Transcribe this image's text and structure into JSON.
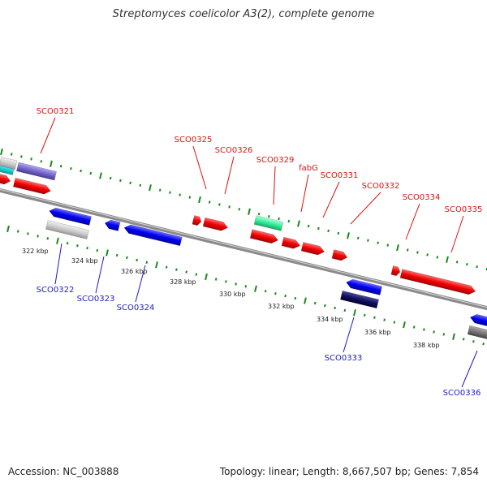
{
  "title": "Streptomyces coelicolor A3(2), complete genome",
  "footer": {
    "accession": "Accession: NC_003888",
    "stats": "Topology: linear; Length: 8,667,507 bp; Genes: 7,854"
  },
  "kbp_labels": [
    "322 kbp",
    "324 kbp",
    "326 kbp",
    "328 kbp",
    "330 kbp",
    "332 kbp",
    "334 kbp",
    "336 kbp",
    "338 kbp"
  ],
  "forward_gene_labels": [
    "SCO0321",
    "SCO0325",
    "SCO0326",
    "SCO0329",
    "fabG",
    "SCO0331",
    "SCO0332",
    "SCO0334",
    "SCO0335"
  ],
  "reverse_gene_labels": [
    "SCO0322",
    "SCO0323",
    "SCO0324",
    "SCO0333",
    "SCO0336"
  ],
  "colors": {
    "forward_label": "#e01010",
    "reverse_label": "#1a1acc",
    "forward_gene": "#ff0000",
    "reverse_gene": "#0000ff",
    "backbone": "#888888",
    "tick": "#1a8a1a"
  }
}
